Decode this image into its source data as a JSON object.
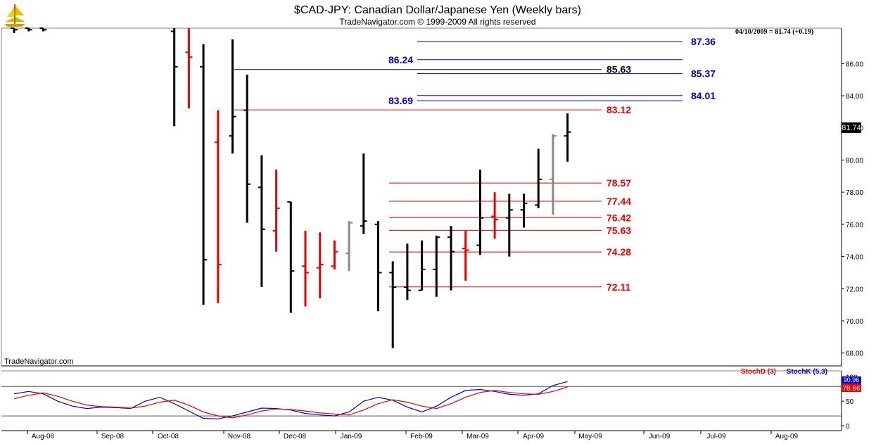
{
  "header": {
    "title": "$CAD-JPY:  Canadian Dollar/Japanese Yen  (Weekly bars)",
    "subtitle": "TradeNavigator.com © 1999-2009 All rights reserved",
    "quote": "04/10/2009 = 81.74 (+0.19)",
    "watermark": "TradeNavigator.com",
    "logo_icon": "navigator-ship-icon"
  },
  "colors": {
    "up_bar": "#000000",
    "down_bar": "#ee0000",
    "neutral_bar": "#888888",
    "blue_level": "#0000cc",
    "red_level": "#ee0000",
    "black_level": "#000000",
    "stoch_d": "#ee0000",
    "stoch_k": "#0000cc"
  },
  "chart_data": [
    {
      "type": "ohlc",
      "x_axis_labels": [
        "Aug-08",
        "Sep-08",
        "Oct-08",
        "Nov-08",
        "Dec-08",
        "Jan-09",
        "Feb-09",
        "Mar-09",
        "Apr-09",
        "May-09",
        "Jun-09",
        "Jul-09",
        "Aug-09"
      ],
      "y_ticks": [
        68,
        70,
        72,
        74,
        76,
        78,
        80,
        82,
        84,
        86
      ],
      "ylim": [
        67.2,
        88.2
      ],
      "grid": false,
      "last_price_label": "81.74",
      "bars": [
        {
          "week": 0,
          "open": 88.2,
          "high": 88.2,
          "low": 87.9,
          "close": 88.1,
          "color": "up"
        },
        {
          "week": 1,
          "open": 88.2,
          "high": 88.2,
          "low": 88.0,
          "close": 88.1,
          "color": "up"
        },
        {
          "week": 2,
          "open": 88.2,
          "high": 88.2,
          "low": 88.0,
          "close": 88.1,
          "color": "up"
        },
        {
          "week": 11,
          "open": 88.0,
          "high": 88.2,
          "low": 82.1,
          "close": 85.8,
          "color": "up"
        },
        {
          "week": 12,
          "open": 86.7,
          "high": 88.2,
          "low": 83.2,
          "close": 86.4,
          "color": "down"
        },
        {
          "week": 13,
          "open": 85.8,
          "high": 87.2,
          "low": 71.0,
          "close": 73.8,
          "color": "up"
        },
        {
          "week": 14,
          "open": 81.1,
          "high": 83.1,
          "low": 71.1,
          "close": 73.5,
          "color": "down"
        },
        {
          "week": 15,
          "open": 81.5,
          "high": 87.5,
          "low": 80.4,
          "close": 82.7,
          "color": "up"
        },
        {
          "week": 16,
          "open": 83.1,
          "high": 85.3,
          "low": 76.1,
          "close": 78.5,
          "color": "up"
        },
        {
          "week": 17,
          "open": 78.3,
          "high": 80.3,
          "low": 72.1,
          "close": 75.7,
          "color": "up"
        },
        {
          "week": 18,
          "open": 75.6,
          "high": 79.4,
          "low": 74.3,
          "close": 77.0,
          "color": "down"
        },
        {
          "week": 19,
          "open": 77.4,
          "high": 77.4,
          "low": 70.5,
          "close": 73.1,
          "color": "up"
        },
        {
          "week": 20,
          "open": 73.4,
          "high": 75.6,
          "low": 70.9,
          "close": 73.0,
          "color": "down"
        },
        {
          "week": 21,
          "open": 73.3,
          "high": 75.5,
          "low": 71.4,
          "close": 73.5,
          "color": "down"
        },
        {
          "week": 22,
          "open": 73.4,
          "high": 75.0,
          "low": 73.2,
          "close": 74.3,
          "color": "down"
        },
        {
          "week": 23,
          "open": 74.2,
          "high": 76.2,
          "low": 73.1,
          "close": 76.1,
          "color": "neutral"
        },
        {
          "week": 24,
          "open": 75.9,
          "high": 80.4,
          "low": 75.4,
          "close": 76.2,
          "color": "up"
        },
        {
          "week": 25,
          "open": 76.0,
          "high": 76.2,
          "low": 70.6,
          "close": 73.0,
          "color": "up"
        },
        {
          "week": 26,
          "open": 73.0,
          "high": 73.7,
          "low": 68.3,
          "close": 72.1,
          "color": "up"
        },
        {
          "week": 27,
          "open": 72.1,
          "high": 74.8,
          "low": 71.3,
          "close": 71.9,
          "color": "up"
        },
        {
          "week": 28,
          "open": 71.9,
          "high": 75.0,
          "low": 71.9,
          "close": 73.2,
          "color": "up"
        },
        {
          "week": 29,
          "open": 73.2,
          "high": 75.3,
          "low": 71.5,
          "close": 75.2,
          "color": "up"
        },
        {
          "week": 30,
          "open": 75.2,
          "high": 75.9,
          "low": 71.9,
          "close": 74.3,
          "color": "up"
        },
        {
          "week": 31,
          "open": 74.5,
          "high": 75.6,
          "low": 72.5,
          "close": 74.4,
          "color": "down"
        },
        {
          "week": 32,
          "open": 74.7,
          "high": 79.4,
          "low": 74.1,
          "close": 76.4,
          "color": "up"
        },
        {
          "week": 33,
          "open": 76.5,
          "high": 78.0,
          "low": 75.1,
          "close": 76.3,
          "color": "down"
        },
        {
          "week": 34,
          "open": 76.4,
          "high": 77.9,
          "low": 74.0,
          "close": 76.9,
          "color": "up"
        },
        {
          "week": 35,
          "open": 76.9,
          "high": 77.9,
          "low": 75.8,
          "close": 77.3,
          "color": "up"
        },
        {
          "week": 36,
          "open": 77.2,
          "high": 80.7,
          "low": 77.0,
          "close": 78.8,
          "color": "up"
        },
        {
          "week": 37,
          "open": 78.8,
          "high": 81.6,
          "low": 76.6,
          "close": 81.5,
          "color": "neutral"
        },
        {
          "week": 38,
          "open": 81.5,
          "high": 82.9,
          "low": 79.9,
          "close": 81.74,
          "color": "up"
        }
      ],
      "levels": [
        {
          "value": 87.36,
          "label": "87.36",
          "color": "blue",
          "side": "right"
        },
        {
          "value": 86.24,
          "label": "86.24",
          "color": "blue",
          "side": "left"
        },
        {
          "value": 85.63,
          "label": "85.63",
          "color": "black",
          "side": "mid"
        },
        {
          "value": 85.37,
          "label": "85.37",
          "color": "blue",
          "side": "right"
        },
        {
          "value": 84.01,
          "label": "84.01",
          "color": "blue",
          "side": "right"
        },
        {
          "value": 83.69,
          "label": "83.69",
          "color": "blue",
          "side": "left"
        },
        {
          "value": 83.12,
          "label": "83.12",
          "color": "red",
          "side": "mid"
        },
        {
          "value": 78.57,
          "label": "78.57",
          "color": "red",
          "side": "mid"
        },
        {
          "value": 77.44,
          "label": "77.44",
          "color": "red",
          "side": "mid"
        },
        {
          "value": 76.42,
          "label": "76.42",
          "color": "red",
          "side": "mid"
        },
        {
          "value": 75.63,
          "label": "75.63",
          "color": "red",
          "side": "mid"
        },
        {
          "value": 74.28,
          "label": "74.28",
          "color": "red",
          "side": "mid"
        },
        {
          "value": 72.11,
          "label": "72.11",
          "color": "red",
          "side": "mid"
        }
      ]
    },
    {
      "type": "line",
      "legend": [
        {
          "name": "StochD (3)",
          "color": "red"
        },
        {
          "name": "StochK (5,3)",
          "color": "blue"
        }
      ],
      "legend_position": "top-right",
      "y_ticks": [
        0,
        50,
        100
      ],
      "reference_lines": [
        20,
        80
      ],
      "ylim": [
        -10,
        112
      ],
      "last_values": [
        "78.66",
        "90.96"
      ],
      "series": [
        {
          "name": "StochK (5,3)",
          "color": "blue",
          "x": [
            0,
            1,
            2,
            3,
            4,
            5,
            6,
            7,
            8,
            9,
            10,
            11,
            12,
            13,
            14,
            15,
            16,
            17,
            18,
            19,
            20,
            21,
            22,
            23,
            24,
            25,
            26,
            27,
            28,
            29,
            30,
            31,
            32,
            33,
            34,
            35,
            36,
            37,
            38
          ],
          "values": [
            65,
            70,
            65,
            50,
            40,
            35,
            38,
            37,
            35,
            50,
            58,
            45,
            30,
            15,
            14,
            20,
            28,
            36,
            35,
            32,
            25,
            22,
            20,
            28,
            50,
            58,
            52,
            38,
            28,
            40,
            58,
            72,
            74,
            70,
            64,
            62,
            65,
            82,
            90
          ]
        },
        {
          "name": "StochD (3)",
          "color": "red",
          "x": [
            0,
            1,
            2,
            3,
            4,
            5,
            6,
            7,
            8,
            9,
            10,
            11,
            12,
            13,
            14,
            15,
            16,
            17,
            18,
            19,
            20,
            21,
            22,
            23,
            24,
            25,
            26,
            27,
            28,
            29,
            30,
            31,
            32,
            33,
            34,
            35,
            36,
            37,
            38
          ],
          "values": [
            55,
            62,
            67,
            60,
            50,
            42,
            39,
            38,
            36,
            40,
            48,
            52,
            42,
            28,
            20,
            16,
            22,
            30,
            34,
            33,
            30,
            26,
            24,
            22,
            32,
            45,
            53,
            48,
            40,
            35,
            45,
            58,
            68,
            72,
            68,
            65,
            64,
            70,
            79
          ]
        }
      ]
    }
  ]
}
